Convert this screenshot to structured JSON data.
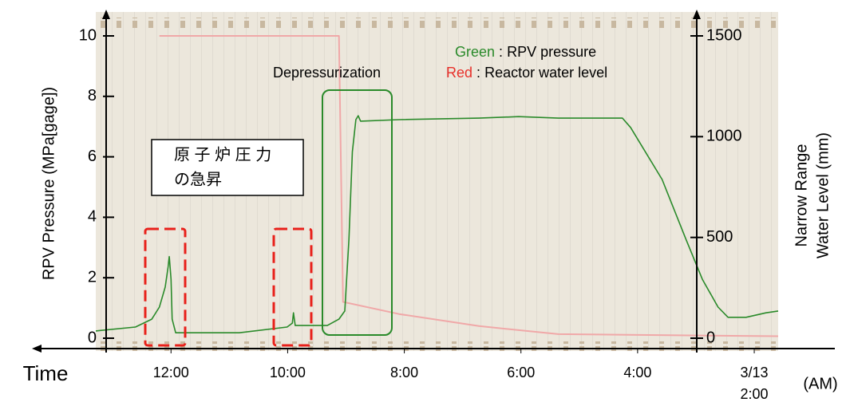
{
  "chart_data": {
    "type": "line",
    "x_title": "Time",
    "x_unit_label": "(AM)",
    "date_label": "3/13",
    "y_title": "RPV Pressure (MPa[gage])",
    "y2_title": [
      "Narrow Range",
      "Water Level (mm)"
    ],
    "xlim": [
      13.29,
      1.59
    ],
    "xticks": [
      {
        "value": 12,
        "label": "12:00"
      },
      {
        "value": 10,
        "label": "10:00"
      },
      {
        "value": 8,
        "label": "8:00"
      },
      {
        "value": 6,
        "label": "6:00"
      },
      {
        "value": 4,
        "label": "4:00"
      },
      {
        "value": 2,
        "label": "2:00"
      }
    ],
    "ylim": [
      0,
      10
    ],
    "yticks": [
      0,
      2,
      4,
      6,
      8,
      10
    ],
    "y2lim": [
      0,
      1500
    ],
    "y2ticks": [
      0,
      500,
      1000,
      1500
    ],
    "legend_separator": ":",
    "series": [
      {
        "name": "RPV pressure",
        "key": "Green",
        "color": "#2a8a2a",
        "x": [
          13.29,
          12.61,
          12.33,
          12.2,
          12.1,
          12.05,
          12.03,
          12.0,
          11.98,
          11.92,
          10.83,
          10.01,
          9.92,
          9.9,
          9.87,
          9.32,
          9.12,
          9.02,
          8.95,
          8.89,
          8.83,
          8.79,
          8.75,
          8.09,
          6.72,
          6.04,
          5.36,
          4.26,
          4.12,
          3.58,
          3.17,
          2.89,
          2.62,
          2.45,
          2.14,
          1.8,
          1.59
        ],
        "values": [
          0.24,
          0.37,
          0.63,
          1.03,
          1.69,
          2.35,
          2.7,
          1.95,
          0.63,
          0.18,
          0.18,
          0.37,
          0.5,
          0.84,
          0.42,
          0.42,
          0.63,
          0.9,
          3.27,
          6.17,
          7.23,
          7.36,
          7.18,
          7.23,
          7.28,
          7.33,
          7.28,
          7.28,
          6.97,
          5.25,
          3.27,
          1.95,
          1.03,
          0.69,
          0.69,
          0.84,
          0.9
        ]
      },
      {
        "name": "Reactor water level",
        "key": "Red",
        "color": "#e8302a",
        "line_color": "#f0a8a8",
        "axis": "y2",
        "x": [
          12.2,
          9.12,
          9.05,
          8.09,
          6.72,
          5.36,
          1.59
        ],
        "values": [
          1500,
          1500,
          180,
          120,
          60,
          20,
          10
        ]
      }
    ],
    "annotations": {
      "depressurization": "Depressurization",
      "jp_note": [
        "原 子 炉 圧 力",
        "の急昇"
      ]
    }
  }
}
